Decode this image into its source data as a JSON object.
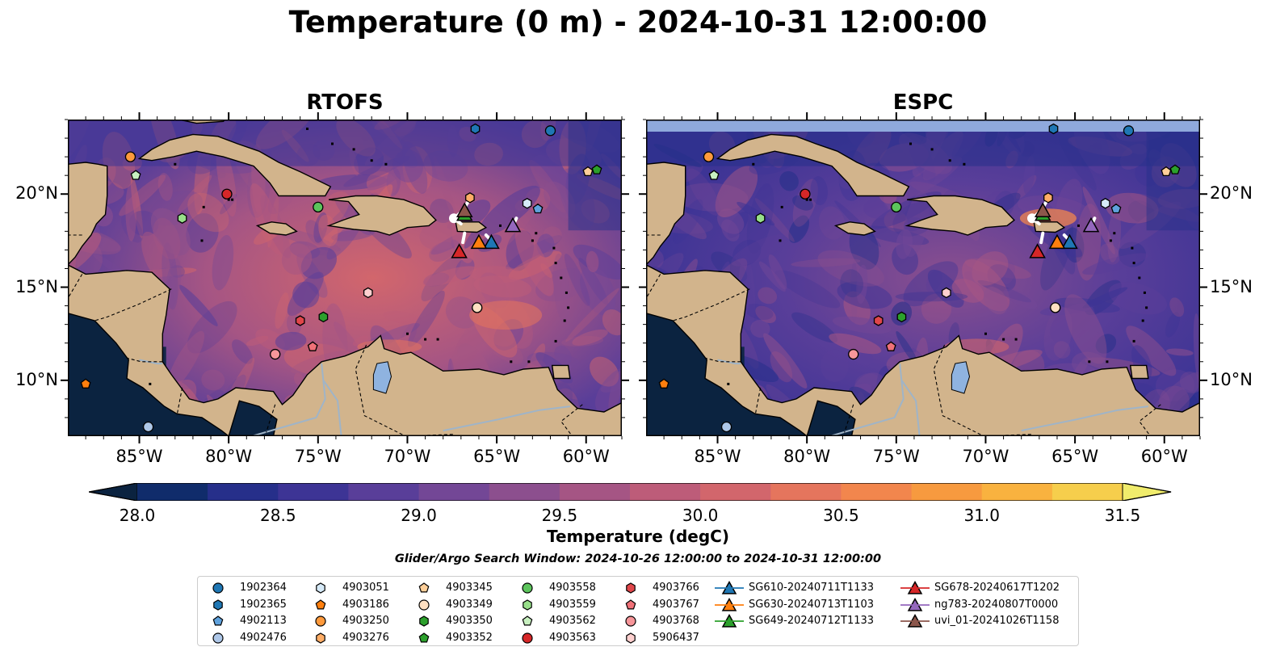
{
  "title": "Temperature (0 m) - 2024-10-31 12:00:00",
  "panels": [
    {
      "title": "RTOFS",
      "land_extends_top": true,
      "ticks_left": true
    },
    {
      "title": "ESPC",
      "land_extends_top": false,
      "ticks_left": false
    }
  ],
  "axes": {
    "lon_ticks": [
      "85°W",
      "80°W",
      "75°W",
      "70°W",
      "65°W",
      "60°W"
    ],
    "lon_values": [
      -85,
      -80,
      -75,
      -70,
      -65,
      -60
    ],
    "lat_ticks": [
      "20°N",
      "15°N",
      "10°N"
    ],
    "lat_values": [
      20,
      15,
      10
    ],
    "lon_range": [
      -89,
      -58
    ],
    "lat_range": [
      7,
      24
    ]
  },
  "colorbar": {
    "label": "Temperature (degC)",
    "min": 28.0,
    "max": 31.5,
    "step": 0.25,
    "tick_labels": [
      "28.0",
      "28.5",
      "29.0",
      "29.5",
      "30.0",
      "30.5",
      "31.0",
      "31.5"
    ],
    "tick_values": [
      28.0,
      28.5,
      29.0,
      29.5,
      30.0,
      30.5,
      31.0,
      31.5
    ],
    "colors": [
      "#0b2340",
      "#102c6b",
      "#262f8a",
      "#3d3495",
      "#593e99",
      "#734796",
      "#8c4f8e",
      "#a55584",
      "#bd5c79",
      "#d2666c",
      "#e5755d",
      "#f2864d",
      "#f79a3f",
      "#f9b23f",
      "#f6ce4c",
      "#f0ec6c"
    ]
  },
  "search_window": "Glider/Argo Search Window: 2024-10-26 12:00:00 to 2024-10-31 12:00:00",
  "legend": [
    {
      "label": "1902364",
      "marker": "circle",
      "color": "#1f77b4",
      "lon": -62.0,
      "lat": 23.4
    },
    {
      "label": "1902365",
      "marker": "hexagon",
      "color": "#1f77b4",
      "lon": -66.2,
      "lat": 23.5
    },
    {
      "label": "4902113",
      "marker": "pentagon",
      "color": "#5fa2dd",
      "lon": -62.7,
      "lat": 19.2
    },
    {
      "label": "4902476",
      "marker": "circle",
      "color": "#aec7e8",
      "lon": -84.5,
      "lat": 7.5
    },
    {
      "label": "4903051",
      "marker": "hexagon",
      "color": "#d6eaf8",
      "lon": -63.3,
      "lat": 19.5
    },
    {
      "label": "4903186",
      "marker": "pentagon",
      "color": "#ff7f0e",
      "lon": -88.0,
      "lat": 9.8
    },
    {
      "label": "4903250",
      "marker": "circle",
      "color": "#ff9a3c",
      "lon": -85.5,
      "lat": 22.0
    },
    {
      "label": "4903276",
      "marker": "hexagon",
      "color": "#ffad66",
      "lon": -66.5,
      "lat": 19.8
    },
    {
      "label": "4903345",
      "marker": "pentagon",
      "color": "#ffcf99",
      "lon": -59.9,
      "lat": 21.2
    },
    {
      "label": "4903349",
      "marker": "circle",
      "color": "#ffe0c2",
      "lon": -66.1,
      "lat": 13.9
    },
    {
      "label": "4903350",
      "marker": "hexagon",
      "color": "#2ca02c",
      "lon": -74.7,
      "lat": 13.4
    },
    {
      "label": "4903352",
      "marker": "pentagon",
      "color": "#2ca02c",
      "lon": -59.4,
      "lat": 21.3
    },
    {
      "label": "4903558",
      "marker": "circle",
      "color": "#5cc45c",
      "lon": -75.0,
      "lat": 19.3
    },
    {
      "label": "4903559",
      "marker": "hexagon",
      "color": "#98df8a",
      "lon": -82.6,
      "lat": 18.7
    },
    {
      "label": "4903562",
      "marker": "pentagon",
      "color": "#c8f0c0",
      "lon": -85.2,
      "lat": 21.0
    },
    {
      "label": "4903563",
      "marker": "circle",
      "color": "#d62728",
      "lon": -80.1,
      "lat": 20.0
    },
    {
      "label": "4903766",
      "marker": "hexagon",
      "color": "#e0464a",
      "lon": -76.0,
      "lat": 13.2
    },
    {
      "label": "4903767",
      "marker": "pentagon",
      "color": "#f07178",
      "lon": -75.3,
      "lat": 11.8
    },
    {
      "label": "4903768",
      "marker": "circle",
      "color": "#f7969a",
      "lon": -77.4,
      "lat": 11.4
    },
    {
      "label": "5906437",
      "marker": "hexagon",
      "color": "#ffd0cf",
      "lon": -72.2,
      "lat": 14.7
    },
    {
      "label": "SG610-20240711T1133",
      "marker": "triangle",
      "color": "#1f77b4",
      "lon": -65.3,
      "lat": 17.4
    },
    {
      "label": "SG630-20240713T1103",
      "marker": "triangle",
      "color": "#ff7f0e",
      "lon": -66.0,
      "lat": 17.4
    },
    {
      "label": "SG649-20240712T1133",
      "marker": "triangle",
      "color": "#2ca02c",
      "lon": -66.8,
      "lat": 18.9
    },
    {
      "label": "SG678-20240617T1202",
      "marker": "triangle",
      "color": "#d62728",
      "lon": -67.1,
      "lat": 16.9
    },
    {
      "label": "ng783-20240807T0000",
      "marker": "triangle",
      "color": "#9467bd",
      "lon": -64.1,
      "lat": 18.3
    },
    {
      "label": "uvi_01-20241026T1158",
      "marker": "triangle",
      "color": "#8c564b",
      "lon": -66.8,
      "lat": 19.1
    }
  ]
}
